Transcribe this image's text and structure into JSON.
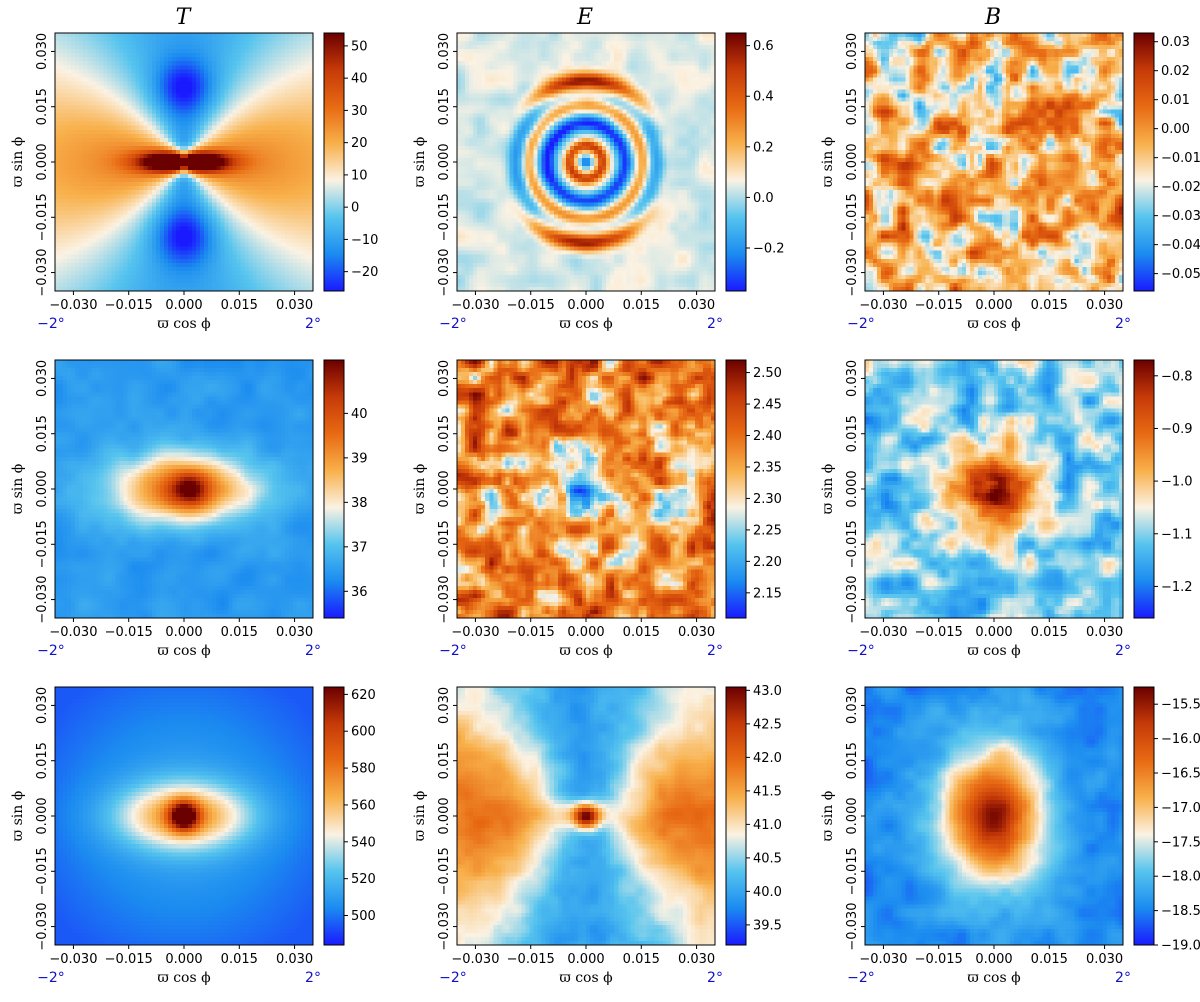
{
  "colors": {
    "colormap": [
      "#1a1aff",
      "#1b8bf0",
      "#56c4ee",
      "#fbf2e3",
      "#f8b04a",
      "#e86a13",
      "#c63a08",
      "#6b0000"
    ],
    "degree_label": "#1010c8"
  },
  "column_titles": [
    "T",
    "E",
    "B"
  ],
  "chart_data": [
    {
      "type": "heatmap",
      "panel": "T row 1",
      "pattern": "T1",
      "x": [
        -0.035,
        0.035
      ],
      "y": [
        -0.035,
        0.035
      ],
      "xticks": [
        "-0.030",
        "-0.015",
        "0.000",
        "0.015",
        "0.030"
      ],
      "yticks": [
        "-0.030",
        "-0.015",
        "0.000",
        "0.015",
        "0.030"
      ],
      "xlabel": "ϖ cos ϕ",
      "ylabel": "ϖ sin ϕ",
      "angle_labels": [
        "−2°",
        "2°"
      ],
      "colorbar": {
        "range": [
          -26,
          54
        ],
        "ticks": [
          -20,
          -10,
          0,
          10,
          20,
          30,
          40,
          50
        ],
        "tick_labels": [
          "−20",
          "−10",
          "0",
          "10",
          "20",
          "30",
          "40",
          "50"
        ]
      }
    },
    {
      "type": "heatmap",
      "panel": "E row 1",
      "pattern": "E1",
      "x": [
        -0.035,
        0.035
      ],
      "y": [
        -0.035,
        0.035
      ],
      "xticks": [
        "-0.030",
        "-0.015",
        "0.000",
        "0.015",
        "0.030"
      ],
      "yticks": [
        "-0.030",
        "-0.015",
        "0.000",
        "0.015",
        "0.030"
      ],
      "xlabel": "ϖ cos ϕ",
      "ylabel": "ϖ sin ϕ",
      "angle_labels": [
        "−2°",
        "2°"
      ],
      "colorbar": {
        "range": [
          -0.37,
          0.65
        ],
        "ticks": [
          -0.2,
          0.0,
          0.2,
          0.4,
          0.6
        ],
        "tick_labels": [
          "−0.2",
          "0.0",
          "0.2",
          "0.4",
          "0.6"
        ]
      }
    },
    {
      "type": "heatmap",
      "panel": "B row 1",
      "pattern": "B1",
      "x": [
        -0.035,
        0.035
      ],
      "y": [
        -0.035,
        0.035
      ],
      "xticks": [
        "-0.030",
        "-0.015",
        "0.000",
        "0.015",
        "0.030"
      ],
      "yticks": [
        "-0.030",
        "-0.015",
        "0.000",
        "0.015",
        "0.030"
      ],
      "xlabel": "ϖ cos ϕ",
      "ylabel": "ϖ sin ϕ",
      "angle_labels": [
        "−2°",
        "2°"
      ],
      "colorbar": {
        "range": [
          -0.056,
          0.033
        ],
        "ticks": [
          0.03,
          0.02,
          0.01,
          0.0,
          -0.01,
          -0.02,
          -0.03,
          -0.04,
          -0.05
        ],
        "tick_labels": [
          "0.03",
          "0.02",
          "0.01",
          "0.00",
          "−0.01",
          "−0.02",
          "−0.03",
          "−0.04",
          "−0.05"
        ]
      }
    },
    {
      "type": "heatmap",
      "panel": "T row 2",
      "pattern": "T2",
      "x": [
        -0.035,
        0.035
      ],
      "y": [
        -0.035,
        0.035
      ],
      "xticks": [
        "-0.030",
        "-0.015",
        "0.000",
        "0.015",
        "0.030"
      ],
      "yticks": [
        "-0.030",
        "-0.015",
        "0.000",
        "0.015",
        "0.030"
      ],
      "xlabel": "ϖ cos ϕ",
      "ylabel": "ϖ sin ϕ",
      "angle_labels": [
        "−2°",
        "2°"
      ],
      "colorbar": {
        "range": [
          35.4,
          41.2
        ],
        "ticks": [
          36,
          37,
          38,
          39,
          40
        ],
        "tick_labels": [
          "36",
          "37",
          "38",
          "39",
          "40"
        ]
      }
    },
    {
      "type": "heatmap",
      "panel": "E row 2",
      "pattern": "E2",
      "x": [
        -0.035,
        0.035
      ],
      "y": [
        -0.035,
        0.035
      ],
      "xticks": [
        "-0.030",
        "-0.015",
        "0.000",
        "0.015",
        "0.030"
      ],
      "yticks": [
        "-0.030",
        "-0.015",
        "0.000",
        "0.015",
        "0.030"
      ],
      "xlabel": "ϖ cos ϕ",
      "ylabel": "ϖ sin ϕ",
      "angle_labels": [
        "−2°",
        "2°"
      ],
      "colorbar": {
        "range": [
          2.11,
          2.52
        ],
        "ticks": [
          2.15,
          2.2,
          2.25,
          2.3,
          2.35,
          2.4,
          2.45,
          2.5
        ],
        "tick_labels": [
          "2.15",
          "2.20",
          "2.25",
          "2.30",
          "2.35",
          "2.40",
          "2.45",
          "2.50"
        ]
      }
    },
    {
      "type": "heatmap",
      "panel": "B row 2",
      "pattern": "B2",
      "x": [
        -0.035,
        0.035
      ],
      "y": [
        -0.035,
        0.035
      ],
      "xticks": [
        "-0.030",
        "-0.015",
        "0.000",
        "0.015",
        "0.030"
      ],
      "yticks": [
        "-0.030",
        "-0.015",
        "0.000",
        "0.015",
        "0.030"
      ],
      "xlabel": "ϖ cos ϕ",
      "ylabel": "ϖ sin ϕ",
      "angle_labels": [
        "−2°",
        "2°"
      ],
      "colorbar": {
        "range": [
          -1.26,
          -0.77
        ],
        "ticks": [
          -0.8,
          -0.9,
          -1.0,
          -1.1,
          -1.2
        ],
        "tick_labels": [
          "−0.8",
          "−0.9",
          "−1.0",
          "−1.1",
          "−1.2"
        ]
      }
    },
    {
      "type": "heatmap",
      "panel": "T row 3",
      "pattern": "T3",
      "x": [
        -0.035,
        0.035
      ],
      "y": [
        -0.035,
        0.035
      ],
      "xticks": [
        "-0.030",
        "-0.015",
        "0.000",
        "0.015",
        "0.030"
      ],
      "yticks": [
        "-0.030",
        "-0.015",
        "0.000",
        "0.015",
        "0.030"
      ],
      "xlabel": "ϖ cos ϕ",
      "ylabel": "ϖ sin ϕ",
      "angle_labels": [
        "−2°",
        "2°"
      ],
      "colorbar": {
        "range": [
          484,
          624
        ],
        "ticks": [
          500,
          520,
          540,
          560,
          580,
          600,
          620
        ],
        "tick_labels": [
          "500",
          "520",
          "540",
          "560",
          "580",
          "600",
          "620"
        ]
      }
    },
    {
      "type": "heatmap",
      "panel": "E row 3",
      "pattern": "E3",
      "x": [
        -0.035,
        0.035
      ],
      "y": [
        -0.035,
        0.035
      ],
      "xticks": [
        "-0.030",
        "-0.015",
        "0.000",
        "0.015",
        "0.030"
      ],
      "yticks": [
        "-0.030",
        "-0.015",
        "0.000",
        "0.015",
        "0.030"
      ],
      "xlabel": "ϖ cos ϕ",
      "ylabel": "ϖ sin ϕ",
      "angle_labels": [
        "−2°",
        "2°"
      ],
      "colorbar": {
        "range": [
          39.2,
          43.05
        ],
        "ticks": [
          39.5,
          40.0,
          40.5,
          41.0,
          41.5,
          42.0,
          42.5,
          43.0
        ],
        "tick_labels": [
          "39.5",
          "40.0",
          "40.5",
          "41.0",
          "41.5",
          "42.0",
          "42.5",
          "43.0"
        ]
      }
    },
    {
      "type": "heatmap",
      "panel": "B row 3",
      "pattern": "B3",
      "x": [
        -0.035,
        0.035
      ],
      "y": [
        -0.035,
        0.035
      ],
      "xticks": [
        "-0.030",
        "-0.015",
        "0.000",
        "0.015",
        "0.030"
      ],
      "yticks": [
        "-0.030",
        "-0.015",
        "0.000",
        "0.015",
        "0.030"
      ],
      "xlabel": "ϖ cos ϕ",
      "ylabel": "ϖ sin ϕ",
      "angle_labels": [
        "−2°",
        "2°"
      ],
      "colorbar": {
        "range": [
          -19.0,
          -15.25
        ],
        "ticks": [
          -15.5,
          -16.0,
          -16.5,
          -17.0,
          -17.5,
          -18.0,
          -18.5,
          -19.0
        ],
        "tick_labels": [
          "−15.5",
          "−16.0",
          "−16.5",
          "−17.0",
          "−17.5",
          "−18.0",
          "−18.5",
          "−19.0"
        ]
      }
    }
  ]
}
